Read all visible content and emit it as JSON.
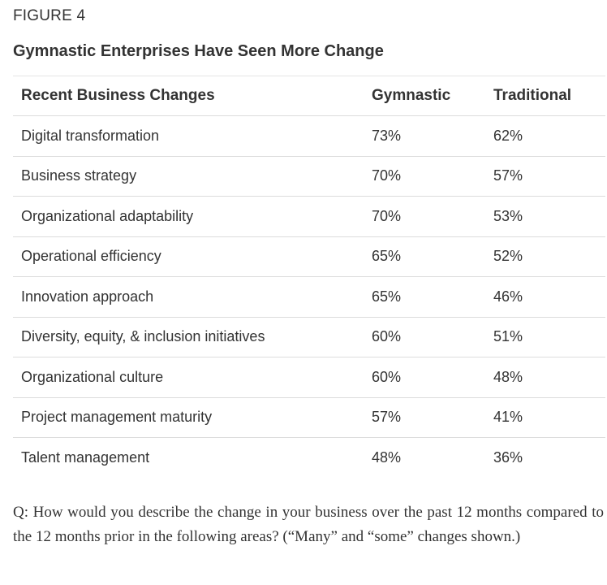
{
  "figure": {
    "label": "FIGURE 4",
    "title": "Gymnastic Enterprises Have Seen More Change"
  },
  "table": {
    "headers": [
      "Recent Business Changes",
      "Gymnastic",
      "Traditional"
    ],
    "rows": [
      [
        "Digital transformation",
        "73%",
        "62%"
      ],
      [
        "Business strategy",
        "70%",
        "57%"
      ],
      [
        "Organizational adaptability",
        "70%",
        "53%"
      ],
      [
        "Operational efficiency",
        "65%",
        "52%"
      ],
      [
        "Innovation approach",
        "65%",
        "46%"
      ],
      [
        "Diversity, equity, & inclusion initiatives",
        "60%",
        "51%"
      ],
      [
        "Organizational culture",
        "60%",
        "48%"
      ],
      [
        "Project management maturity",
        "57%",
        "41%"
      ],
      [
        "Talent management",
        "48%",
        "36%"
      ]
    ]
  },
  "question": "Q: How would you describe the change in your business over the past 12 months compared to the 12 months prior in the following areas? (“Many” and “some” changes shown.)"
}
